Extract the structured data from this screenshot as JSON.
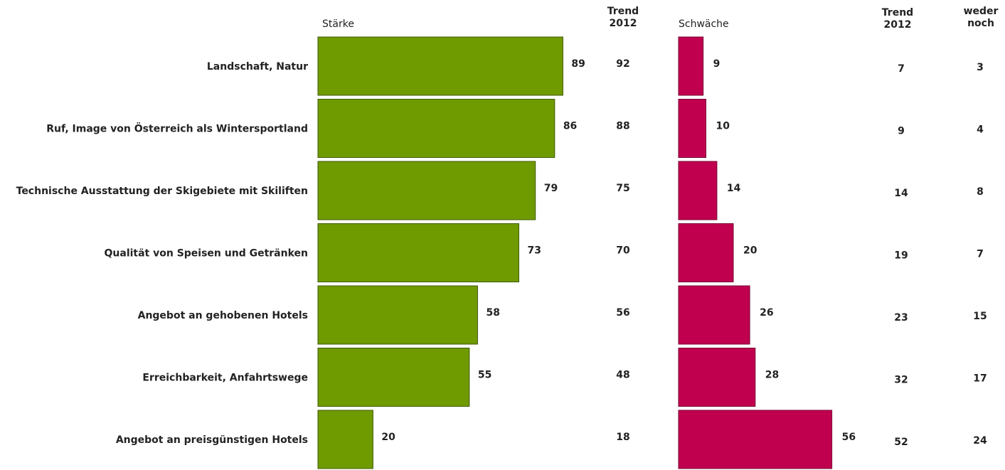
{
  "headers": {
    "strength": "Stärke",
    "trend_strength": [
      "Trend",
      "2012"
    ],
    "weakness": "Schwäche",
    "trend_weakness": [
      "Trend",
      "2012"
    ],
    "neither": [
      "weder",
      "noch"
    ]
  },
  "colors": {
    "strength_fill": "#6f9a00",
    "strength_stroke": "#3f5a00",
    "weakness_fill": "#c0004f",
    "weakness_stroke": "#7a0032"
  },
  "chart_data": {
    "type": "bar",
    "orientation": "horizontal",
    "categories": [
      "Landschaft, Natur",
      "Ruf, Image von Österreich als Wintersportland",
      "Technische Ausstattung der Skigebiete mit Skiliften",
      "Qualität von Speisen und Getränken",
      "Angebot an gehobenen Hotels",
      "Erreichbarkeit, Anfahrtswege",
      "Angebot an preisgünstigen Hotels"
    ],
    "series": [
      {
        "name": "Stärke",
        "values": [
          89,
          86,
          79,
          73,
          58,
          55,
          20
        ]
      },
      {
        "name": "Schwäche",
        "values": [
          9,
          10,
          14,
          20,
          26,
          28,
          56
        ]
      }
    ],
    "trend_2012_strength": [
      92,
      88,
      75,
      70,
      56,
      48,
      18
    ],
    "trend_2012_weakness": [
      7,
      9,
      14,
      19,
      23,
      32,
      52
    ],
    "weder_noch": [
      3,
      4,
      8,
      7,
      15,
      17,
      24
    ],
    "grid": false,
    "legend": "none"
  }
}
